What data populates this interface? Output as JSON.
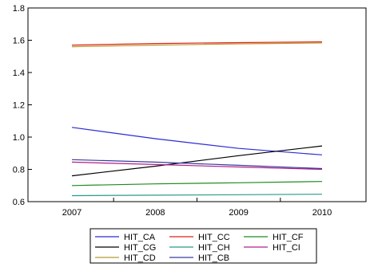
{
  "chart_data": {
    "type": "line",
    "title": "",
    "xlabel": "",
    "ylabel": "",
    "categories": [
      "2007",
      "2008",
      "2009",
      "2010"
    ],
    "ylim": [
      0.6,
      1.8
    ],
    "yticks": [
      "0.6",
      "0.8",
      "1.0",
      "1.2",
      "1.4",
      "1.6",
      "1.8"
    ],
    "grid": false,
    "legend_position": "bottom",
    "series": [
      {
        "name": "HIT_CA",
        "color": "#2b2bd6",
        "values": [
          1.06,
          0.99,
          0.93,
          0.89
        ]
      },
      {
        "name": "HIT_CC",
        "color": "#e0201b",
        "values": [
          1.57,
          1.58,
          1.585,
          1.59
        ]
      },
      {
        "name": "HIT_CF",
        "color": "#1e8a1e",
        "values": [
          0.7,
          0.71,
          0.717,
          0.725
        ]
      },
      {
        "name": "HIT_CG",
        "color": "#000000",
        "values": [
          0.76,
          0.82,
          0.885,
          0.945
        ]
      },
      {
        "name": "HIT_CH",
        "color": "#2a9a8a",
        "values": [
          0.637,
          0.64,
          0.643,
          0.646
        ]
      },
      {
        "name": "HIT_CI",
        "color": "#b0208a",
        "values": [
          0.845,
          0.83,
          0.815,
          0.8
        ]
      },
      {
        "name": "HIT_CD",
        "color": "#b89a30",
        "values": [
          1.56,
          1.57,
          1.578,
          1.583
        ]
      },
      {
        "name": "HIT_CB",
        "color": "#3a3aa0",
        "values": [
          0.86,
          0.845,
          0.825,
          0.805
        ]
      }
    ]
  }
}
